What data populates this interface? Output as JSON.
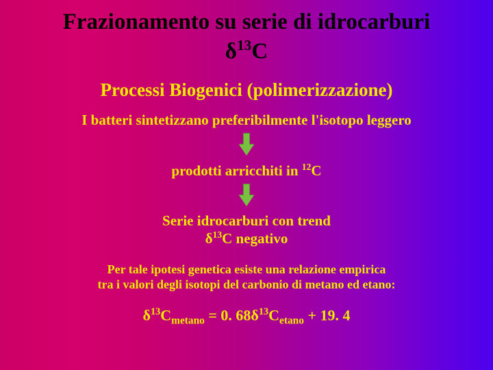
{
  "title_line": "Frazionamento su serie di idrocarburi",
  "delta_symbol": "δ",
  "delta_sup": "13",
  "delta_letter": "C",
  "subtitle": "Processi Biogenici (polimerizzazione)",
  "line_batteri": "I batteri sintetizzano preferibilmente l'isotopo leggero",
  "line_prodotti_pre": "prodotti arricchiti in ",
  "line_prodotti_sup": "12",
  "line_prodotti_post": "C",
  "line_serie_1": "Serie idrocarburi con trend",
  "line_serie_2_pre": "δ",
  "line_serie_2_sup": "13",
  "line_serie_2_post": "C negativo",
  "ipotesi_1": "Per tale ipotesi genetica esiste una relazione empirica",
  "ipotesi_2": "tra i valori degli isotopi del carbonio di metano ed etano:",
  "formula": {
    "d1": "δ",
    "s1": "13",
    "t1": "C",
    "sub1": "metano",
    "eq": " = 0. 68",
    "d2": "δ",
    "s2": "13",
    "t2": "C",
    "sub2": "etano",
    "tail": " + 19. 4"
  },
  "colors": {
    "title": "#000000",
    "body": "#f0e800",
    "arrow_fill": "#77c040",
    "arrow_border": "#5a9030"
  }
}
